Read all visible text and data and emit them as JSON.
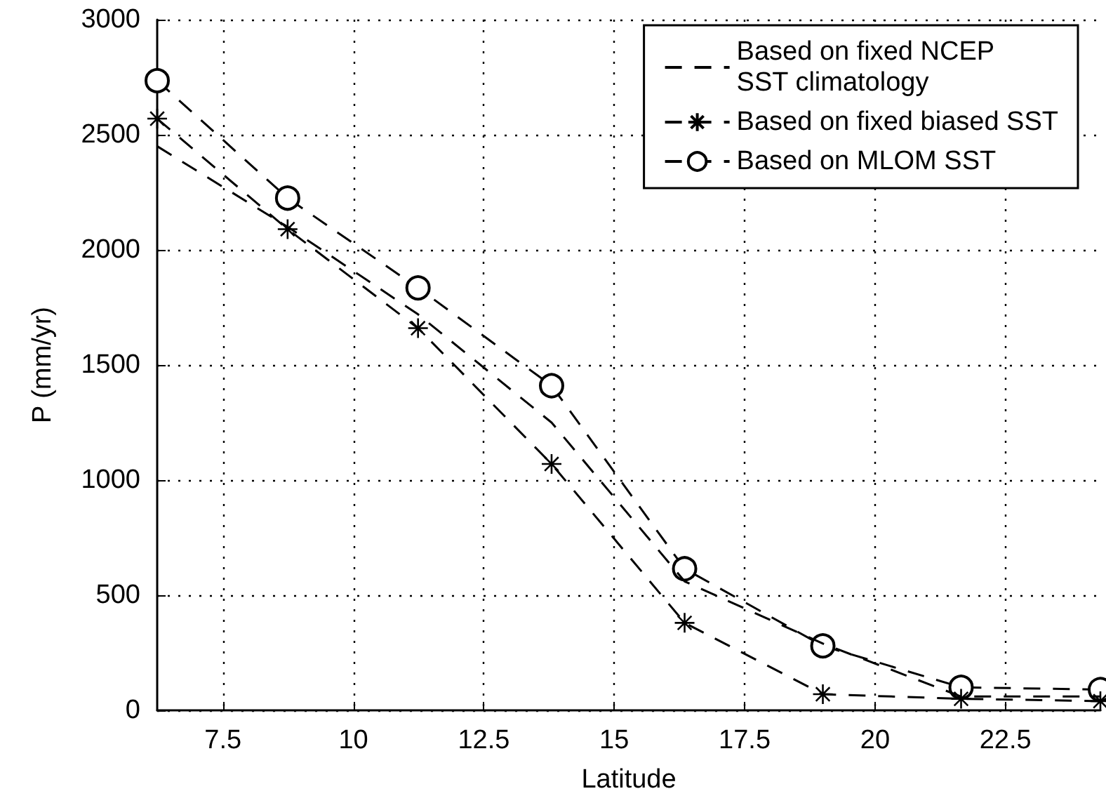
{
  "chart_data": {
    "type": "line",
    "xlabel": "Latitude",
    "ylabel": "P (mm/yr)",
    "x": [
      6.24,
      8.74,
      11.24,
      13.8,
      16.35,
      19.0,
      21.65,
      24.32
    ],
    "xlim": [
      6.24,
      24.32
    ],
    "xticks": [
      7.5,
      10,
      12.5,
      15,
      17.5,
      20,
      22.5
    ],
    "ylim": [
      0,
      3000
    ],
    "yticks": [
      0,
      500,
      1000,
      1500,
      2000,
      2500,
      3000
    ],
    "grid": true,
    "legend": "top right",
    "line_style": "dashed",
    "series": [
      {
        "name": "Based on fixed NCEP\nSST climatology",
        "color": "#000000",
        "marker": "none",
        "values": [
          2450,
          2100,
          1720,
          1250,
          560,
          290,
          60,
          60
        ]
      },
      {
        "name": "Based on fixed biased SST",
        "color": "#000000",
        "marker": "cross",
        "values": [
          2570,
          2090,
          1660,
          1070,
          380,
          70,
          50,
          40
        ]
      },
      {
        "name": "Based on MLOM SST",
        "color": "#000000",
        "marker": "circle",
        "values": [
          2735,
          2225,
          1835,
          1410,
          615,
          280,
          100,
          90
        ]
      }
    ]
  }
}
